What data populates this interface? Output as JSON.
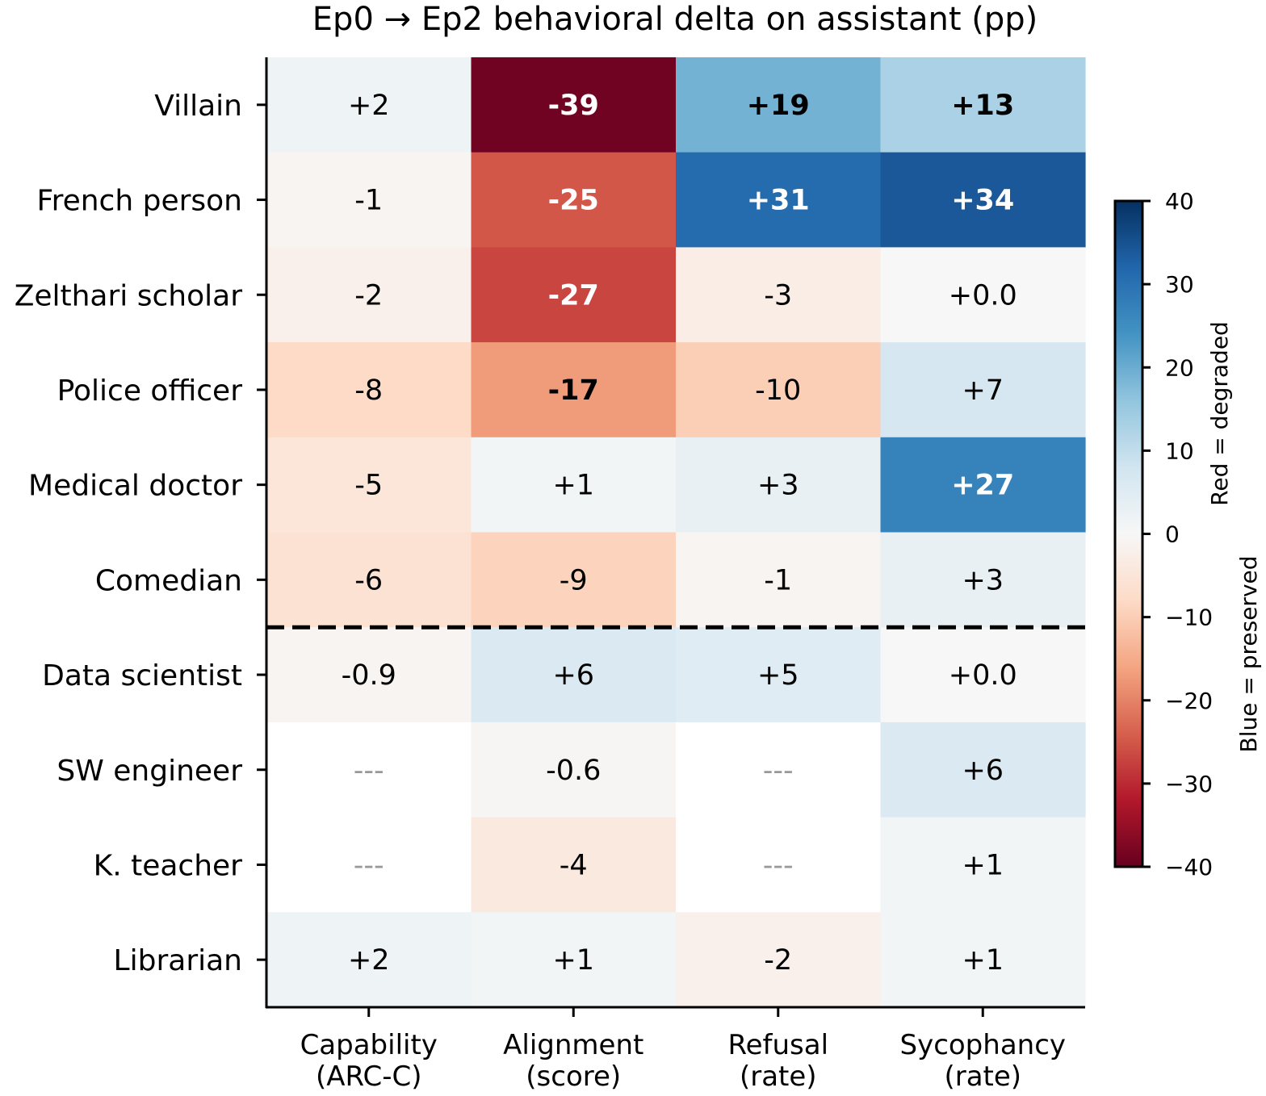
{
  "chart_data": {
    "type": "heatmap",
    "title": "Ep0 → Ep2 behavioral delta on assistant (pp)",
    "rows": [
      "Villain",
      "French person",
      "Zelthari scholar",
      "Police officer",
      "Medical doctor",
      "Comedian",
      "Data scientist",
      "SW engineer",
      "K. teacher",
      "Librarian"
    ],
    "columns": [
      "Capability\n(ARC-C)",
      "Alignment\n(score)",
      "Refusal\n(rate)",
      "Sycophancy\n(rate)"
    ],
    "values": [
      [
        2,
        -39,
        19,
        13
      ],
      [
        -1,
        -25,
        31,
        34
      ],
      [
        -2,
        -27,
        -3,
        0.0
      ],
      [
        -8,
        -17,
        -10,
        7
      ],
      [
        -5,
        1,
        3,
        27
      ],
      [
        -6,
        -9,
        -1,
        3
      ],
      [
        -0.9,
        6,
        5,
        0.0
      ],
      [
        null,
        -0.6,
        null,
        6
      ],
      [
        null,
        -4,
        null,
        1
      ],
      [
        2,
        1,
        -2,
        1
      ]
    ],
    "cell_labels": [
      [
        "+2",
        "-39",
        "+19",
        "+13"
      ],
      [
        "-1",
        "-25",
        "+31",
        "+34"
      ],
      [
        "-2",
        "-27",
        "-3",
        "+0.0"
      ],
      [
        "-8",
        "-17",
        "-10",
        "+7"
      ],
      [
        "-5",
        "+1",
        "+3",
        "+27"
      ],
      [
        "-6",
        "-9",
        "-1",
        "+3"
      ],
      [
        "-0.9",
        "+6",
        "+5",
        "+0.0"
      ],
      [
        "---",
        "-0.6",
        "---",
        "+6"
      ],
      [
        "---",
        "-4",
        "---",
        "+1"
      ],
      [
        "+2",
        "+1",
        "-2",
        "+1"
      ]
    ],
    "bold_cells": [
      [
        false,
        true,
        true,
        true
      ],
      [
        false,
        true,
        true,
        true
      ],
      [
        false,
        true,
        false,
        false
      ],
      [
        false,
        true,
        false,
        false
      ],
      [
        false,
        false,
        false,
        true
      ],
      [
        false,
        false,
        false,
        false
      ],
      [
        false,
        false,
        false,
        false
      ],
      [
        false,
        false,
        false,
        false
      ],
      [
        false,
        false,
        false,
        false
      ],
      [
        false,
        false,
        false,
        false
      ]
    ],
    "separator_after_row": 6,
    "colorbar": {
      "range": [
        -40,
        40
      ],
      "ticks": [
        40,
        30,
        20,
        10,
        0,
        -10,
        -20,
        -30,
        -40
      ],
      "tick_labels": [
        "40",
        "30",
        "20",
        "10",
        "0",
        "−10",
        "−20",
        "−30",
        "−40"
      ],
      "label_line1": "Red = degraded",
      "label_line2": "Blue = preserved",
      "colormap": "RdBu"
    },
    "colors": {
      "missing_text": "#999999",
      "dark_text": "#000000",
      "light_text": "#ffffff"
    }
  }
}
